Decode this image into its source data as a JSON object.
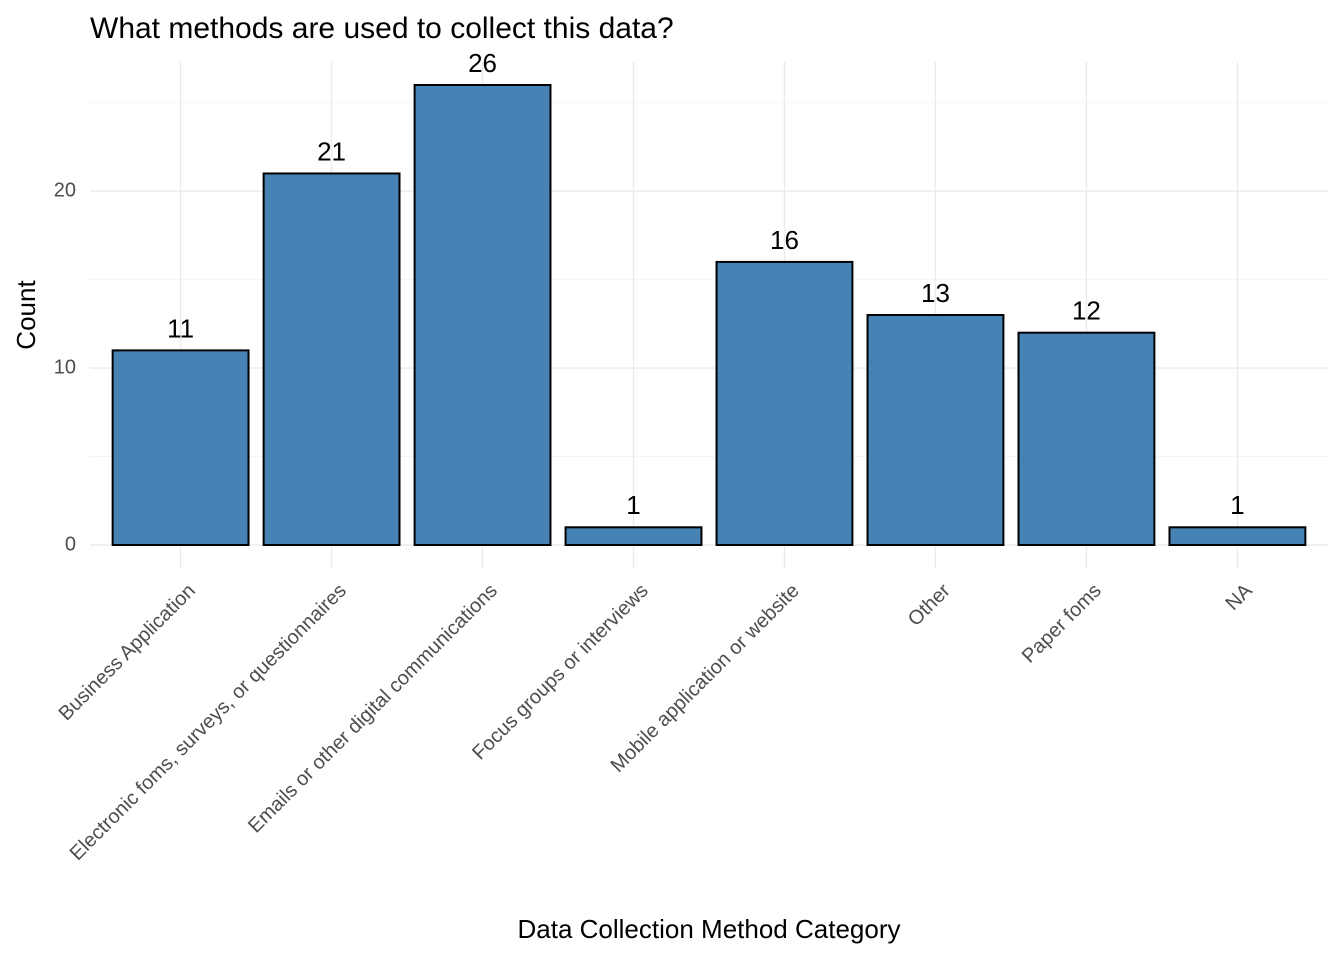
{
  "chart_data": {
    "type": "bar",
    "title": "What methods are used to collect this data?",
    "x_label": "Data Collection Method Category",
    "y_label": "Count",
    "categories": [
      "Business Application",
      "Electronic foms, surveys, or questionnaires",
      "Emails or other digital communications",
      "Focus groups or interviews",
      "Mobile application or website",
      "Other",
      "Paper foms",
      "NA"
    ],
    "values": [
      11,
      21,
      26,
      1,
      16,
      13,
      12,
      1
    ],
    "color": "#4682b4",
    "ylim": [
      -1.3,
      27.3
    ],
    "yticks": [
      0,
      10,
      20
    ],
    "y_minor_ticks": [
      5,
      15,
      25
    ],
    "grid": true
  }
}
